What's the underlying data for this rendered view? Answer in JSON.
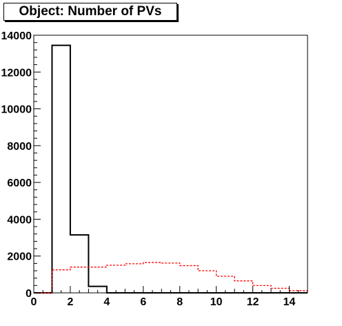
{
  "chart_data": {
    "type": "histogram",
    "title": "Object: Number of PVs",
    "xlabel": "",
    "ylabel": "",
    "xlim": [
      0,
      15
    ],
    "ylim": [
      0,
      14000
    ],
    "x_ticks": [
      0,
      2,
      4,
      6,
      8,
      10,
      12,
      14
    ],
    "y_ticks": [
      0,
      2000,
      4000,
      6000,
      8000,
      10000,
      12000,
      14000
    ],
    "bin_edges": [
      0,
      1,
      2,
      3,
      4,
      5,
      6,
      7,
      8,
      9,
      10,
      11,
      12,
      13,
      14,
      15
    ],
    "grid": false,
    "series": [
      {
        "color": "#000000",
        "style": "solid",
        "values": [
          0,
          13450,
          3150,
          350,
          0,
          0,
          0,
          0,
          0,
          0,
          0,
          0,
          0,
          0,
          0
        ]
      },
      {
        "color": "#ff0000",
        "style": "dashed",
        "values": [
          0,
          1250,
          1400,
          1400,
          1500,
          1580,
          1650,
          1620,
          1480,
          1200,
          900,
          650,
          400,
          250,
          120
        ]
      }
    ]
  }
}
